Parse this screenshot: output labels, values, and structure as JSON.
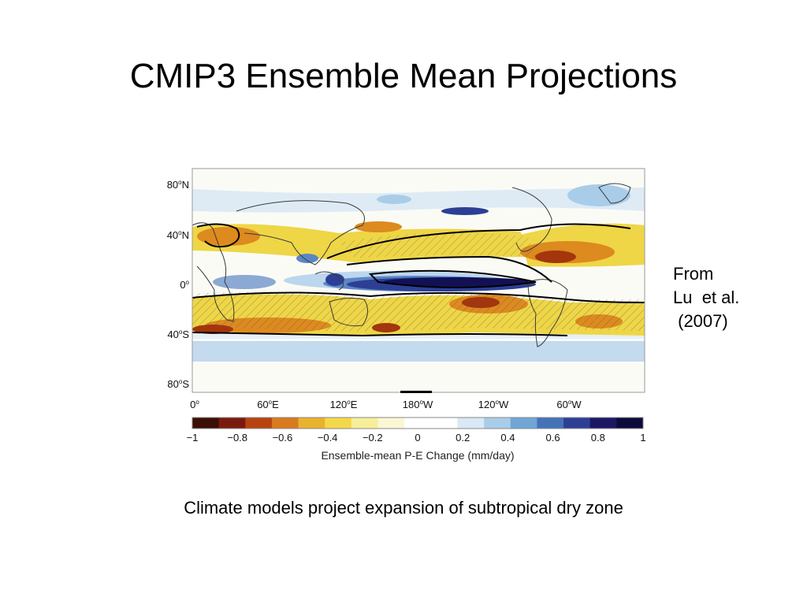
{
  "slide": {
    "title": "CMIP3 Ensemble Mean Projections",
    "attribution": "From\nLu  et al.\n (2007)",
    "caption": "Climate models project expansion of subtropical dry zone"
  },
  "map": {
    "lat_ticks": [
      {
        "label": "80",
        "hemi": "N"
      },
      {
        "label": "40",
        "hemi": "N"
      },
      {
        "label": "0",
        "hemi": ""
      },
      {
        "label": "40",
        "hemi": "S"
      },
      {
        "label": "80",
        "hemi": "S"
      }
    ],
    "lon_ticks": [
      {
        "label": "0",
        "hemi": ""
      },
      {
        "label": "60",
        "hemi": "E"
      },
      {
        "label": "120",
        "hemi": "E"
      },
      {
        "label": "180",
        "hemi": "W"
      },
      {
        "label": "120",
        "hemi": "W"
      },
      {
        "label": "60",
        "hemi": "W"
      }
    ],
    "colorbar": {
      "title": "Ensemble-mean P-E Change (mm/day)",
      "tick_labels": [
        "−1",
        "−0.8",
        "−0.6",
        "−0.4",
        "−0.2",
        "0",
        "0.2",
        "0.4",
        "0.6",
        "0.8",
        "1"
      ],
      "colors": [
        "#3b0f05",
        "#7a1a0c",
        "#b8430f",
        "#d97a1e",
        "#e9b22f",
        "#f3d949",
        "#f7ee9a",
        "#fbf7d2",
        "#ffffff",
        "#ffffff",
        "#d9e9f6",
        "#a9cde9",
        "#6fa6d6",
        "#4573b8",
        "#2c3f95",
        "#1b1763",
        "#0b0a3a"
      ]
    },
    "colors": {
      "dry_strong": "#a4350c",
      "dry_mid": "#dd8a1f",
      "dry_weak": "#eed646",
      "wet_weak": "#bcd6ee",
      "wet_mid": "#5b86c5",
      "wet_strong": "#131154",
      "coast": "#3a3a3a",
      "contour": "#000000"
    }
  }
}
